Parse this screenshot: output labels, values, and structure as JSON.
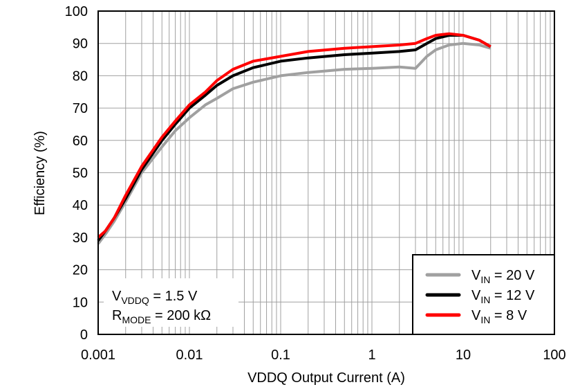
{
  "chart_data": {
    "type": "line",
    "xscale": "log",
    "xlabel": "VDDQ Output Current (A)",
    "ylabel": "Efficiency (%)",
    "xlim": [
      0.001,
      100
    ],
    "ylim": [
      0,
      100
    ],
    "grid": true,
    "xticks": [
      "0.001",
      "0.01",
      "0.1",
      "1",
      "10",
      "100"
    ],
    "yticks": [
      "0",
      "10",
      "20",
      "30",
      "40",
      "50",
      "60",
      "70",
      "80",
      "90",
      "100"
    ],
    "legend_position": "bottom-right",
    "annotation": {
      "line1_main": "V",
      "line1_sub": "VDDQ",
      "line1_rest": " = 1.5 V",
      "line2_main": "R",
      "line2_sub": "MODE",
      "line2_rest": " = 200 kΩ"
    },
    "series": [
      {
        "name_main": "V",
        "name_sub": "IN",
        "name_rest": " = 20 V",
        "color": "#a0a0a0",
        "x": [
          0.001,
          0.0012,
          0.0015,
          0.002,
          0.003,
          0.005,
          0.007,
          0.01,
          0.015,
          0.02,
          0.03,
          0.05,
          0.1,
          0.2,
          0.5,
          1,
          2,
          3,
          4,
          5,
          7,
          10,
          15,
          20
        ],
        "y": [
          28,
          31,
          35,
          41,
          50,
          58,
          63,
          67,
          71,
          73,
          76,
          78,
          80,
          81,
          82,
          82.3,
          82.7,
          82.3,
          86,
          88,
          89.5,
          90,
          89.5,
          88.5
        ]
      },
      {
        "name_main": "V",
        "name_sub": "IN",
        "name_rest": " = 12 V",
        "color": "#000000",
        "x": [
          0.001,
          0.0012,
          0.0015,
          0.002,
          0.003,
          0.005,
          0.007,
          0.01,
          0.015,
          0.02,
          0.03,
          0.05,
          0.1,
          0.2,
          0.5,
          1,
          2,
          3,
          4,
          5,
          7,
          10,
          15,
          20
        ],
        "y": [
          29,
          32,
          36,
          42,
          51,
          60,
          65,
          70,
          74,
          77,
          80,
          82.5,
          84.5,
          85.5,
          86.5,
          87,
          87.5,
          88,
          90,
          91.5,
          92.5,
          92.5,
          91,
          89
        ]
      },
      {
        "name_main": "V",
        "name_sub": "IN",
        "name_rest": " = 8 V",
        "color": "#ff0000",
        "x": [
          0.001,
          0.0012,
          0.0015,
          0.002,
          0.003,
          0.005,
          0.007,
          0.01,
          0.015,
          0.02,
          0.03,
          0.05,
          0.1,
          0.2,
          0.5,
          1,
          2,
          3,
          4,
          5,
          7,
          10,
          15,
          20
        ],
        "y": [
          30,
          32,
          36,
          43,
          52,
          61,
          66,
          71,
          75,
          78.5,
          82,
          84.5,
          86,
          87.5,
          88.5,
          89,
          89.5,
          90,
          91.5,
          92.5,
          93,
          92.5,
          91,
          89
        ]
      }
    ]
  }
}
